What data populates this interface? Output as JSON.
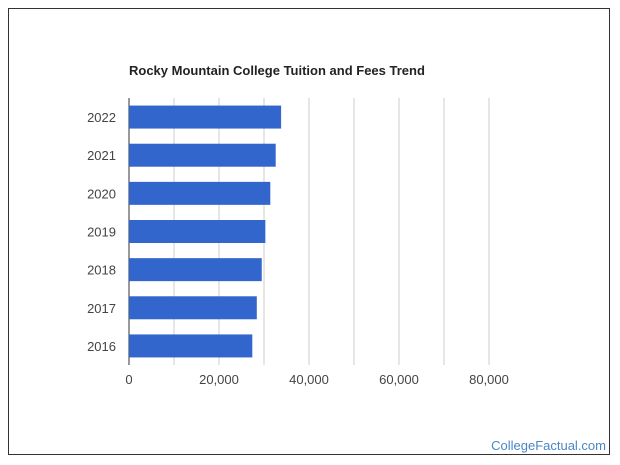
{
  "chart_data": {
    "type": "bar",
    "orientation": "horizontal",
    "title": "Rocky Mountain College Tuition and Fees Trend",
    "xlabel": "",
    "ylabel": "",
    "categories": [
      "2022",
      "2021",
      "2020",
      "2019",
      "2018",
      "2017",
      "2016"
    ],
    "values": [
      33800,
      32600,
      31400,
      30300,
      29500,
      28400,
      27400
    ],
    "xlim": [
      0,
      100000
    ],
    "x_ticks": [
      0,
      20000,
      40000,
      60000,
      80000
    ],
    "x_tick_labels": [
      "0",
      "20,000",
      "40,000",
      "60,000",
      "80,000"
    ],
    "grid": true,
    "bar_color": "#3366cc",
    "grid_color": "#cccccc"
  },
  "watermark": "CollegeFactual.com"
}
